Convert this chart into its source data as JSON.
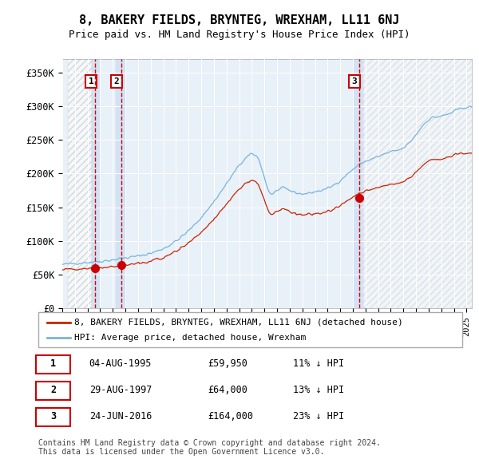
{
  "title": "8, BAKERY FIELDS, BRYNTEG, WREXHAM, LL11 6NJ",
  "subtitle": "Price paid vs. HM Land Registry's House Price Index (HPI)",
  "sale_prices": [
    59950,
    64000,
    164000
  ],
  "sale_labels": [
    "1",
    "2",
    "3"
  ],
  "hpi_color": "#7ab3d9",
  "price_color": "#cc2200",
  "legend_entries": [
    "8, BAKERY FIELDS, BRYNTEG, WREXHAM, LL11 6NJ (detached house)",
    "HPI: Average price, detached house, Wrexham"
  ],
  "table_rows": [
    [
      "1",
      "04-AUG-1995",
      "£59,950",
      "11% ↓ HPI"
    ],
    [
      "2",
      "29-AUG-1997",
      "£64,000",
      "13% ↓ HPI"
    ],
    [
      "3",
      "24-JUN-2016",
      "£164,000",
      "23% ↓ HPI"
    ]
  ],
  "footnote": "Contains HM Land Registry data © Crown copyright and database right 2024.\nThis data is licensed under the Open Government Licence v3.0.",
  "ylim": [
    0,
    370000
  ],
  "yticks": [
    0,
    50000,
    100000,
    150000,
    200000,
    250000,
    300000,
    350000
  ],
  "ytick_labels": [
    "£0",
    "£50K",
    "£100K",
    "£150K",
    "£200K",
    "£250K",
    "£300K",
    "£350K"
  ]
}
